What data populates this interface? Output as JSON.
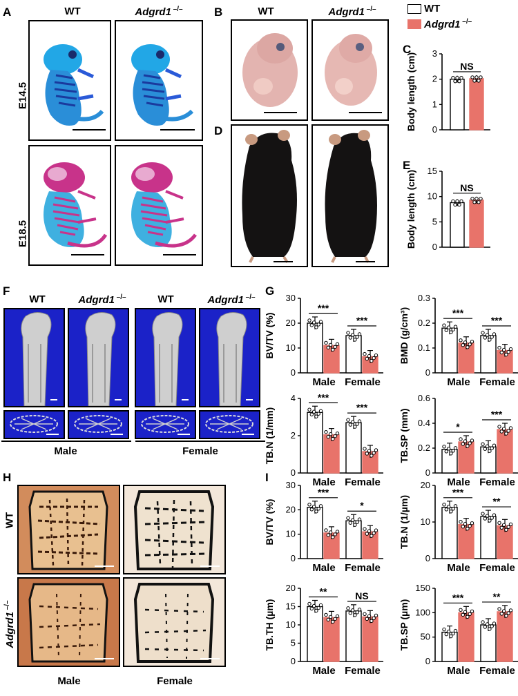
{
  "panels": {
    "A": {
      "label": "A",
      "col_wt": "WT",
      "col_ko": "Adgrd1",
      "ko_sup": " –/–",
      "row1": "E14.5",
      "row2": "E18.5"
    },
    "B": {
      "label": "B",
      "col_wt": "WT",
      "col_ko": "Adgrd1",
      "ko_sup": " –/–"
    },
    "C": {
      "label": "C"
    },
    "D": {
      "label": "D"
    },
    "E": {
      "label": "E"
    },
    "F": {
      "label": "F",
      "cols": [
        "WT",
        "Adgrd1",
        "WT",
        "Adgrd1"
      ],
      "ko_sup": " –/–",
      "sex_male": "Male",
      "sex_female": "Female"
    },
    "G": {
      "label": "G"
    },
    "H": {
      "label": "H",
      "row_wt": "WT",
      "row_ko": "Adgrd1",
      "ko_sup": " –/–",
      "sex_male": "Male",
      "sex_female": "Female"
    },
    "I": {
      "label": "I"
    }
  },
  "legend": {
    "wt": "WT",
    "ko": "Adgrd1",
    "ko_sup": " –/–"
  },
  "colors": {
    "wt": "#ffffff",
    "ko": "#e8736a",
    "stain_blue": "#1fb6e8",
    "stain_red": "#c8338a",
    "ct_bg": "#1b22c8"
  },
  "chart_data": [
    {
      "id": "C",
      "type": "bar",
      "categories": [
        "WT",
        "Adgrd1 -/-"
      ],
      "values": [
        2.0,
        2.02
      ],
      "ylabel": "Body length (cm)",
      "ylim": [
        0,
        3
      ],
      "yticks": [
        0,
        1,
        2,
        3
      ],
      "sig": [
        "NS"
      ]
    },
    {
      "id": "E",
      "type": "bar",
      "categories": [
        "WT",
        "Adgrd1 -/-"
      ],
      "values": [
        8.8,
        9.3
      ],
      "ylabel": "Body length (cm)",
      "ylim": [
        0,
        15
      ],
      "yticks": [
        0,
        5,
        10,
        15
      ],
      "sig": [
        "NS"
      ]
    },
    {
      "id": "G1",
      "type": "bar",
      "categories": [
        "Male",
        "Female"
      ],
      "series": [
        {
          "values": [
            20,
            15
          ]
        },
        {
          "values": [
            11,
            6.5
          ]
        }
      ],
      "ylabel": "BV/TV (%)",
      "ylim": [
        0,
        30
      ],
      "yticks": [
        0,
        10,
        20,
        30
      ],
      "sig": [
        "***",
        "***"
      ]
    },
    {
      "id": "G2",
      "type": "bar",
      "categories": [
        "Male",
        "Female"
      ],
      "series": [
        {
          "values": [
            0.18,
            0.15
          ]
        },
        {
          "values": [
            0.12,
            0.09
          ]
        }
      ],
      "ylabel": "BMD (g/cm³)",
      "ylim": [
        0,
        0.3
      ],
      "yticks": [
        0.0,
        0.1,
        0.2,
        0.3
      ],
      "sig": [
        "***",
        "***"
      ]
    },
    {
      "id": "G3",
      "type": "bar",
      "categories": [
        "Male",
        "Female"
      ],
      "series": [
        {
          "values": [
            3.25,
            2.7
          ]
        },
        {
          "values": [
            2.05,
            1.15
          ]
        }
      ],
      "ylabel": "TB.N (1/mm)",
      "ylim": [
        0,
        4
      ],
      "yticks": [
        0,
        2,
        4
      ],
      "sig": [
        "***",
        "***"
      ]
    },
    {
      "id": "G4",
      "type": "bar",
      "categories": [
        "Male",
        "Female"
      ],
      "series": [
        {
          "values": [
            0.19,
            0.21
          ]
        },
        {
          "values": [
            0.25,
            0.35
          ]
        }
      ],
      "ylabel": "TB.SP (mm)",
      "ylim": [
        0,
        0.6
      ],
      "yticks": [
        0.0,
        0.2,
        0.4,
        0.6
      ],
      "sig": [
        "*",
        "***"
      ]
    },
    {
      "id": "I1",
      "type": "bar",
      "categories": [
        "Male",
        "Female"
      ],
      "series": [
        {
          "values": [
            21,
            15.5
          ]
        },
        {
          "values": [
            10.5,
            11
          ]
        }
      ],
      "ylabel": "BV/TV (%)",
      "ylim": [
        0,
        30
      ],
      "yticks": [
        0,
        10,
        20,
        30
      ],
      "sig": [
        "***",
        "*"
      ]
    },
    {
      "id": "I2",
      "type": "bar",
      "categories": [
        "Male",
        "Female"
      ],
      "series": [
        {
          "values": [
            14,
            11.5
          ]
        },
        {
          "values": [
            9.3,
            9
          ]
        }
      ],
      "ylabel": "TB.N (1/µm)",
      "ylim": [
        0,
        20
      ],
      "yticks": [
        0,
        10,
        20
      ],
      "sig": [
        "***",
        "**"
      ]
    },
    {
      "id": "I3",
      "type": "bar",
      "categories": [
        "Male",
        "Female"
      ],
      "series": [
        {
          "values": [
            15,
            13.8
          ]
        },
        {
          "values": [
            12,
            12.2
          ]
        }
      ],
      "ylabel": "TB.TH (µm)",
      "ylim": [
        0,
        20
      ],
      "yticks": [
        0,
        5,
        10,
        15,
        20
      ],
      "sig": [
        "**",
        "NS"
      ]
    },
    {
      "id": "I4",
      "type": "bar",
      "categories": [
        "Male",
        "Female"
      ],
      "series": [
        {
          "values": [
            60,
            75
          ]
        },
        {
          "values": [
            100,
            102
          ]
        }
      ],
      "ylabel": "TB.SP (µm)",
      "ylim": [
        0,
        150
      ],
      "yticks": [
        0,
        50,
        100,
        150
      ],
      "sig": [
        "***",
        "**"
      ]
    }
  ]
}
